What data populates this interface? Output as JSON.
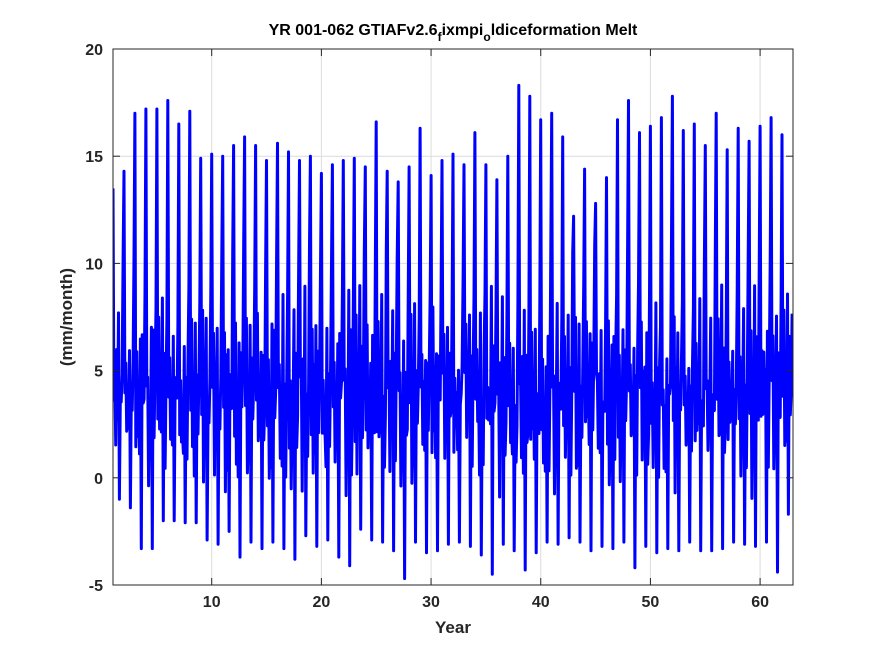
{
  "chart_data": {
    "type": "line",
    "title": {
      "main": "YR 001-062 GTIAFv2.6",
      "sub1": "f",
      "mid": "ixmpi",
      "sub2": "o",
      "tail": "ldiceformation Melt"
    },
    "xlabel": "Year",
    "ylabel": "(mm/month)",
    "xlim": [
      1,
      63
    ],
    "ylim": [
      -5,
      20
    ],
    "xticks": [
      10,
      20,
      30,
      40,
      50,
      60
    ],
    "yticks": [
      -5,
      0,
      5,
      10,
      15,
      20
    ],
    "grid": true,
    "series": [
      {
        "color": "#0000ff",
        "sampling": "monthly",
        "annual_peaks": [
          13.5,
          14.3,
          17.0,
          17.2,
          17.2,
          17.6,
          16.5,
          17.1,
          14.9,
          15.1,
          15.0,
          15.5,
          15.9,
          15.5,
          14.8,
          15.6,
          15.2,
          14.8,
          15.0,
          14.2,
          14.6,
          14.8,
          14.9,
          14.5,
          16.6,
          14.3,
          13.8,
          14.5,
          16.3,
          14.1,
          14.8,
          15.1,
          14.6,
          16.1,
          14.6,
          13.9,
          15.0,
          18.3,
          17.8,
          16.7,
          17.0,
          15.9,
          12.2,
          14.4,
          12.8,
          14.0,
          16.7,
          17.6,
          16.1,
          16.4,
          16.8,
          17.8,
          16.2,
          16.5,
          15.5,
          17.0,
          15.3,
          16.3,
          15.7,
          16.4,
          16.8,
          16.0
        ],
        "annual_troughs": [
          -1.0,
          -1.4,
          -3.3,
          -3.3,
          -2.0,
          -2.0,
          -2.1,
          -2.1,
          -2.9,
          -3.1,
          -2.5,
          -3.7,
          -3.0,
          -3.3,
          -3.0,
          -3.3,
          -3.8,
          -2.7,
          -3.2,
          -2.9,
          -3.7,
          -4.1,
          -2.4,
          -2.9,
          -3.0,
          -3.4,
          -4.7,
          -3.0,
          -3.5,
          -3.4,
          -3.1,
          -3.0,
          -3.2,
          -3.6,
          -4.5,
          -3.1,
          -3.4,
          -4.3,
          -3.5,
          -3.0,
          -3.1,
          -2.8,
          -3.0,
          -3.4,
          -3.2,
          -3.3,
          -3.0,
          -4.2,
          -3.2,
          -3.5,
          -3.3,
          -3.4,
          -3.0,
          -3.4,
          -3.4,
          -3.3,
          -3.0,
          -3.1,
          -3.2,
          -3.0,
          -4.4,
          -1.7
        ]
      }
    ]
  }
}
